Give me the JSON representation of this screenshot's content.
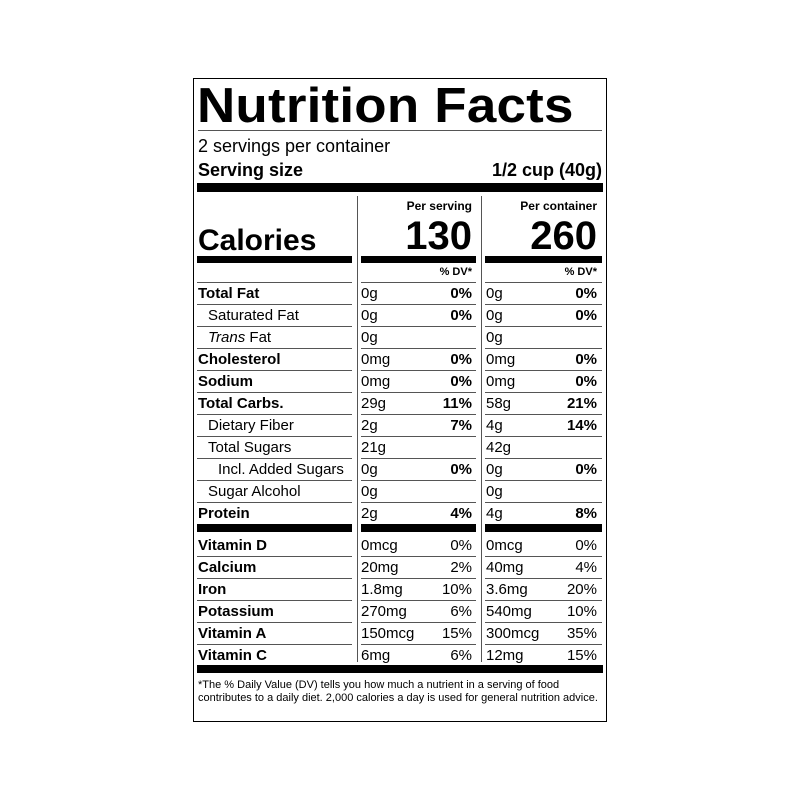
{
  "title": "Nutrition Facts",
  "servings": "2 servings per container",
  "serving_size": {
    "label": "Serving size",
    "value": "1/2 cup (40g)"
  },
  "calories": {
    "label": "Calories",
    "columns": [
      {
        "header": "Per serving",
        "value": "130"
      },
      {
        "header": "Per container",
        "value": "260"
      }
    ]
  },
  "dv_header": "% DV*",
  "rows": [
    {
      "label": "Total Fat",
      "cells": [
        "0g",
        "0%",
        "0g",
        "0%"
      ]
    },
    {
      "label": "Saturated Fat",
      "cells": [
        "0g",
        "0%",
        "0g",
        "0%"
      ]
    },
    {
      "label_italic": "Trans",
      "label": "Fat",
      "cells": [
        "0g",
        null,
        "0g",
        null
      ]
    },
    {
      "label": "Cholesterol",
      "cells": [
        "0mg",
        "0%",
        "0mg",
        "0%"
      ]
    },
    {
      "label": "Sodium",
      "cells": [
        "0mg",
        "0%",
        "0mg",
        "0%"
      ]
    },
    {
      "label": "Total Carbs.",
      "cells": [
        "29g",
        "11%",
        "58g",
        "21%"
      ]
    },
    {
      "label": "Dietary Fiber",
      "cells": [
        "2g",
        "7%",
        "4g",
        "14%"
      ]
    },
    {
      "label": "Total Sugars",
      "cells": [
        "21g",
        null,
        "42g",
        null
      ]
    },
    {
      "label": "Incl. Added Sugars",
      "cells": [
        "0g",
        "0%",
        "0g",
        "0%"
      ]
    },
    {
      "label": "Sugar Alcohol",
      "cells": [
        "0g",
        null,
        "0g",
        null
      ]
    },
    {
      "label": "Protein",
      "cells": [
        "2g",
        "4%",
        "4g",
        "8%"
      ]
    }
  ],
  "vitamins": [
    {
      "label": "Vitamin D",
      "cells": [
        "0mcg",
        "0%",
        "0mcg",
        "0%"
      ]
    },
    {
      "label": "Calcium",
      "cells": [
        "20mg",
        "2%",
        "40mg",
        "4%"
      ]
    },
    {
      "label": "Iron",
      "cells": [
        "1.8mg",
        "10%",
        "3.6mg",
        "20%"
      ]
    },
    {
      "label": "Potassium",
      "cells": [
        "270mg",
        "6%",
        "540mg",
        "10%"
      ]
    },
    {
      "label": "Vitamin A",
      "cells": [
        "150mcg",
        "15%",
        "300mcg",
        "35%"
      ]
    },
    {
      "label": "Vitamin C",
      "cells": [
        "6mg",
        "6%",
        "12mg",
        "15%"
      ]
    }
  ],
  "footnote": "*The % Daily Value (DV) tells you how much a nutrient in a serving of food contributes to a daily diet. 2,000 calories a day is used for general nutrition advice."
}
